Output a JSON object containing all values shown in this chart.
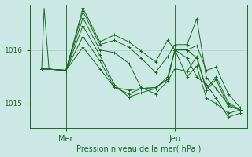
{
  "xlabel": "Pression niveau de la mer( hPa )",
  "background_color": "#cce8e4",
  "grid_color": "#aaccca",
  "line_color": "#1a6b20",
  "text_color": "#1a6b20",
  "yticks": [
    1015,
    1016
  ],
  "ylim": [
    1014.55,
    1016.85
  ],
  "xlim": [
    -0.5,
    8.5
  ],
  "xtick_labels": [
    "Mer",
    "Jeu"
  ],
  "xtick_positions": [
    1.0,
    5.5
  ],
  "vline_positions": [
    1.0,
    5.5
  ],
  "series": [
    {
      "x": [
        0.0,
        1.0,
        1.7,
        2.4,
        3.0,
        3.6,
        4.1,
        4.7,
        5.2,
        5.5,
        6.0,
        6.4,
        6.8,
        7.2,
        7.7,
        8.2
      ],
      "y": [
        1015.65,
        1015.62,
        1016.05,
        1015.65,
        1015.3,
        1015.25,
        1015.28,
        1015.3,
        1015.45,
        1016.0,
        1015.85,
        1015.5,
        1015.35,
        1015.1,
        1014.75,
        1014.82
      ]
    },
    {
      "x": [
        0.0,
        1.0,
        1.7,
        2.4,
        3.0,
        3.6,
        4.1,
        4.7,
        5.2,
        5.5,
        6.0,
        6.4,
        6.8,
        7.2,
        7.7,
        8.2
      ],
      "y": [
        1015.65,
        1015.62,
        1016.25,
        1015.8,
        1015.3,
        1015.18,
        1015.28,
        1015.3,
        1015.45,
        1016.0,
        1015.5,
        1015.7,
        1015.1,
        1015.0,
        1014.82,
        1014.88
      ]
    },
    {
      "x": [
        0.0,
        1.0,
        1.7,
        2.4,
        3.0,
        3.6,
        4.1,
        4.7,
        5.2,
        5.5,
        6.0,
        6.4,
        6.8,
        7.2,
        7.7,
        8.2
      ],
      "y": [
        1015.65,
        1015.62,
        1016.45,
        1015.9,
        1015.35,
        1015.12,
        1015.2,
        1015.28,
        1015.5,
        1016.0,
        1016.0,
        1015.85,
        1015.25,
        1015.45,
        1014.95,
        1014.88
      ]
    },
    {
      "x": [
        0.0,
        1.0,
        1.7,
        2.4,
        3.0,
        3.6,
        4.1,
        4.7,
        5.2,
        5.5,
        6.0,
        6.4,
        6.8,
        7.2,
        7.7,
        8.2
      ],
      "y": [
        1015.65,
        1015.62,
        1016.6,
        1016.0,
        1015.95,
        1015.75,
        1015.3,
        1015.18,
        1015.42,
        1015.65,
        1015.6,
        1015.88,
        1015.28,
        1015.5,
        1015.02,
        1014.88
      ]
    },
    {
      "x": [
        0.0,
        1.0,
        1.7,
        2.4,
        3.0,
        3.6,
        4.1,
        4.7,
        5.2,
        5.5,
        6.0,
        6.4,
        6.8,
        7.2,
        7.7,
        8.2
      ],
      "y": [
        1015.65,
        1015.62,
        1016.72,
        1016.1,
        1016.18,
        1016.05,
        1015.85,
        1015.58,
        1015.88,
        1016.1,
        1016.1,
        1016.58,
        1015.48,
        1015.28,
        1014.98,
        1014.88
      ]
    },
    {
      "x": [
        0.0,
        1.0,
        1.7,
        2.4,
        3.0,
        3.6,
        4.1,
        4.7,
        5.2,
        5.5,
        6.0,
        6.4,
        6.8,
        7.2,
        7.7,
        8.2
      ],
      "y": [
        1015.65,
        1015.62,
        1016.78,
        1016.15,
        1016.28,
        1016.15,
        1015.98,
        1015.78,
        1016.18,
        1016.0,
        1016.0,
        1016.08,
        1015.62,
        1015.68,
        1015.18,
        1014.92
      ]
    }
  ],
  "spike": {
    "x": [
      0.0,
      0.1,
      0.3
    ],
    "y": [
      1015.65,
      1016.78,
      1015.65
    ]
  }
}
